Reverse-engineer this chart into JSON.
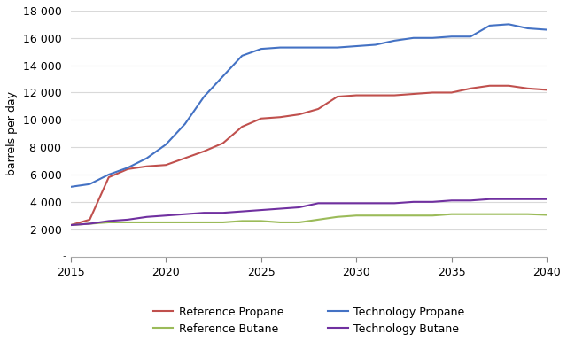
{
  "title": "",
  "ylabel": "barrels per day",
  "xlabel": "",
  "xlim": [
    2015,
    2040
  ],
  "ylim": [
    0,
    18000
  ],
  "yticks": [
    2000,
    4000,
    6000,
    8000,
    10000,
    12000,
    14000,
    16000,
    18000
  ],
  "xticks": [
    2015,
    2020,
    2025,
    2030,
    2035,
    2040
  ],
  "series": {
    "Reference Propane": {
      "color": "#c0504d",
      "x": [
        2015,
        2016,
        2017,
        2018,
        2019,
        2020,
        2021,
        2022,
        2023,
        2024,
        2025,
        2026,
        2027,
        2028,
        2029,
        2030,
        2031,
        2032,
        2033,
        2034,
        2035,
        2036,
        2037,
        2038,
        2039,
        2040
      ],
      "y": [
        2300,
        2700,
        5800,
        6400,
        6600,
        6700,
        7200,
        7700,
        8300,
        9500,
        10100,
        10200,
        10400,
        10800,
        11700,
        11800,
        11800,
        11800,
        11900,
        12000,
        12000,
        12300,
        12500,
        12500,
        12300,
        12200
      ]
    },
    "Technology Propane": {
      "color": "#4472c4",
      "x": [
        2015,
        2016,
        2017,
        2018,
        2019,
        2020,
        2021,
        2022,
        2023,
        2024,
        2025,
        2026,
        2027,
        2028,
        2029,
        2030,
        2031,
        2032,
        2033,
        2034,
        2035,
        2036,
        2037,
        2038,
        2039,
        2040
      ],
      "y": [
        5100,
        5300,
        6000,
        6500,
        7200,
        8200,
        9700,
        11700,
        13200,
        14700,
        15200,
        15300,
        15300,
        15300,
        15300,
        15400,
        15500,
        15800,
        16000,
        16000,
        16100,
        16100,
        16900,
        17000,
        16700,
        16600
      ]
    },
    "Reference Butane": {
      "color": "#9bbb59",
      "x": [
        2015,
        2016,
        2017,
        2018,
        2019,
        2020,
        2021,
        2022,
        2023,
        2024,
        2025,
        2026,
        2027,
        2028,
        2029,
        2030,
        2031,
        2032,
        2033,
        2034,
        2035,
        2036,
        2037,
        2038,
        2039,
        2040
      ],
      "y": [
        2300,
        2400,
        2500,
        2500,
        2500,
        2500,
        2500,
        2500,
        2500,
        2600,
        2600,
        2500,
        2500,
        2700,
        2900,
        3000,
        3000,
        3000,
        3000,
        3000,
        3100,
        3100,
        3100,
        3100,
        3100,
        3050
      ]
    },
    "Technology Butane": {
      "color": "#7030a0",
      "x": [
        2015,
        2016,
        2017,
        2018,
        2019,
        2020,
        2021,
        2022,
        2023,
        2024,
        2025,
        2026,
        2027,
        2028,
        2029,
        2030,
        2031,
        2032,
        2033,
        2034,
        2035,
        2036,
        2037,
        2038,
        2039,
        2040
      ],
      "y": [
        2300,
        2400,
        2600,
        2700,
        2900,
        3000,
        3100,
        3200,
        3200,
        3300,
        3400,
        3500,
        3600,
        3900,
        3900,
        3900,
        3900,
        3900,
        4000,
        4000,
        4100,
        4100,
        4200,
        4200,
        4200,
        4200
      ]
    }
  },
  "background_color": "#ffffff",
  "grid_color": "#d9d9d9",
  "zero_label": "-"
}
